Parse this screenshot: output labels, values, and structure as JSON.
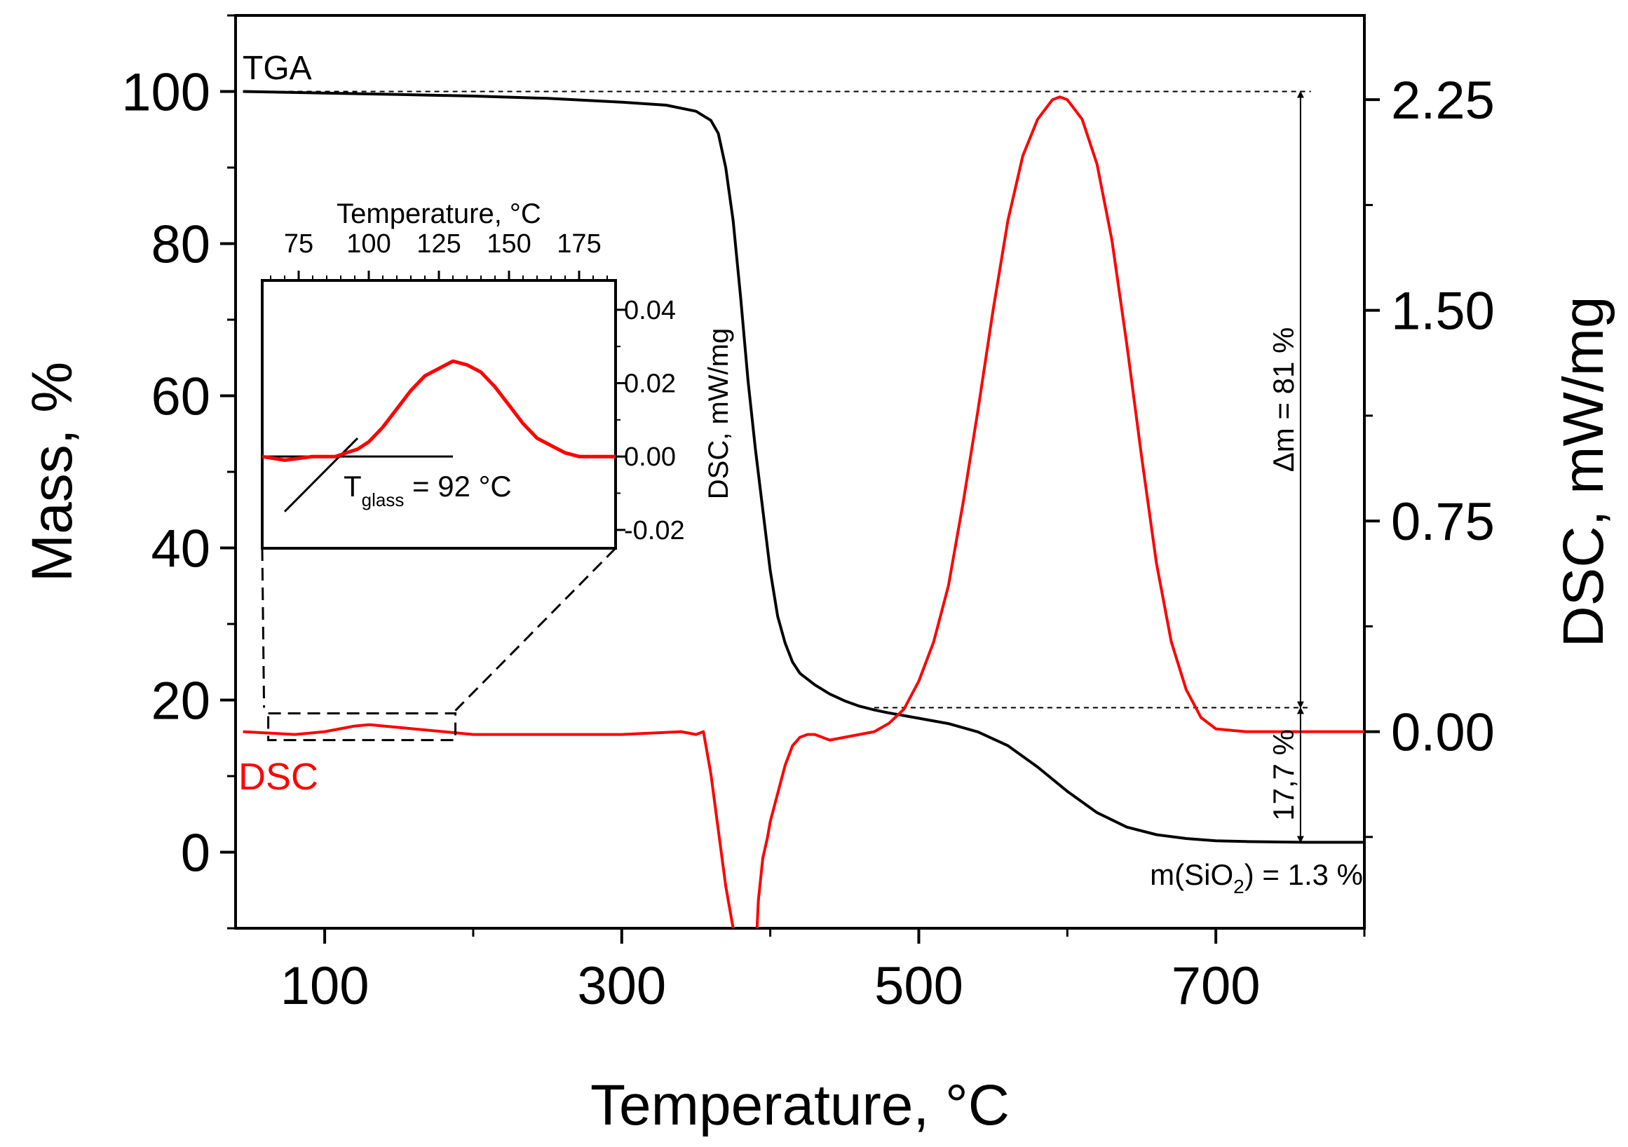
{
  "chart_data": {
    "type": "line",
    "xlabel": "Temperature, °C",
    "ylabel_left": "Mass, %",
    "ylabel_right": "DSC, mW/mg",
    "xlim": [
      40,
      800
    ],
    "ylim_left": [
      -10,
      110
    ],
    "ylim_right": [
      -0.7,
      2.55
    ],
    "xticks": [
      "100",
      "300",
      "500",
      "700"
    ],
    "xticks_values": [
      100,
      300,
      500,
      700
    ],
    "yticks_left": [
      "0",
      "20",
      "40",
      "60",
      "80",
      "100"
    ],
    "yticks_left_values": [
      0,
      20,
      40,
      60,
      80,
      100
    ],
    "yticks_right": [
      "0.00",
      "0.75",
      "1.50",
      "2.25"
    ],
    "yticks_right_values": [
      0,
      0.75,
      1.5,
      2.25
    ],
    "grid": false,
    "colors": {
      "tga": "#000000",
      "dsc": "#ff0000"
    },
    "series": [
      {
        "name": "TGA",
        "axis": "left",
        "x": [
          45,
          100,
          150,
          200,
          250,
          300,
          330,
          350,
          360,
          365,
          370,
          375,
          380,
          385,
          390,
          395,
          400,
          405,
          410,
          415,
          420,
          430,
          440,
          450,
          460,
          470,
          480,
          500,
          520,
          540,
          560,
          580,
          600,
          620,
          640,
          660,
          680,
          700,
          720,
          740,
          760,
          800
        ],
        "values": [
          100,
          99.8,
          99.6,
          99.4,
          99.1,
          98.6,
          98.2,
          97.4,
          96.2,
          94.5,
          90.0,
          83.0,
          73.0,
          62.0,
          53.0,
          45.0,
          37.0,
          31.0,
          27.5,
          25.0,
          23.5,
          22.0,
          20.8,
          19.9,
          19.2,
          18.7,
          18.3,
          17.6,
          16.9,
          15.8,
          14.0,
          11.2,
          8.0,
          5.2,
          3.3,
          2.3,
          1.8,
          1.5,
          1.4,
          1.35,
          1.3,
          1.3
        ]
      },
      {
        "name": "DSC",
        "axis": "right",
        "x": [
          45,
          80,
          100,
          120,
          130,
          140,
          160,
          180,
          200,
          250,
          300,
          340,
          350,
          355,
          360,
          365,
          370,
          375,
          380,
          385,
          388,
          390,
          392,
          395,
          398,
          400,
          405,
          410,
          415,
          420,
          425,
          430,
          435,
          440,
          450,
          460,
          470,
          480,
          490,
          500,
          510,
          520,
          530,
          540,
          550,
          560,
          570,
          580,
          590,
          595,
          600,
          610,
          620,
          630,
          640,
          650,
          660,
          670,
          680,
          690,
          700,
          720,
          740,
          760,
          800
        ],
        "values": [
          0.0,
          -0.01,
          0.0,
          0.02,
          0.025,
          0.02,
          0.01,
          0.0,
          -0.01,
          -0.01,
          -0.01,
          0.0,
          -0.01,
          0.0,
          -0.15,
          -0.35,
          -0.55,
          -0.7,
          -0.78,
          -0.85,
          -0.95,
          -0.82,
          -0.6,
          -0.45,
          -0.38,
          -0.32,
          -0.22,
          -0.12,
          -0.05,
          -0.02,
          -0.01,
          -0.01,
          -0.02,
          -0.03,
          -0.02,
          -0.01,
          0.0,
          0.03,
          0.08,
          0.18,
          0.32,
          0.52,
          0.82,
          1.15,
          1.5,
          1.82,
          2.05,
          2.18,
          2.25,
          2.26,
          2.25,
          2.18,
          2.02,
          1.75,
          1.38,
          0.98,
          0.6,
          0.32,
          0.15,
          0.05,
          0.01,
          0.0,
          0.0,
          0.0,
          0.0
        ]
      }
    ],
    "annotations": {
      "tga_label": "TGA",
      "dsc_label": "DSC",
      "delta_m": "Δm = 81 %",
      "residue_step": "17,7 %",
      "sio2_prefix": "m(SiO",
      "sio2_sub": "2",
      "sio2_suffix": ") = 1.3 %"
    },
    "inset": {
      "type": "line",
      "xlabel": "Temperature, °C",
      "ylabel": "DSC, mW/mg",
      "xlim": [
        62,
        188
      ],
      "ylim": [
        -0.025,
        0.048
      ],
      "xticks": [
        "75",
        "100",
        "125",
        "150",
        "175"
      ],
      "xticks_values": [
        75,
        100,
        125,
        150,
        175
      ],
      "yticks": [
        "-0.02",
        "0.00",
        "0.02",
        "0.04"
      ],
      "yticks_values": [
        -0.02,
        0.0,
        0.02,
        0.04
      ],
      "series": [
        {
          "name": "DSC",
          "x": [
            62,
            70,
            80,
            88,
            92,
            96,
            100,
            105,
            110,
            115,
            120,
            125,
            130,
            135,
            140,
            145,
            150,
            155,
            160,
            165,
            170,
            175,
            180,
            188
          ],
          "values": [
            0.0,
            -0.001,
            0.0,
            0.0,
            0.001,
            0.002,
            0.004,
            0.008,
            0.013,
            0.018,
            0.022,
            0.024,
            0.026,
            0.025,
            0.023,
            0.019,
            0.014,
            0.009,
            0.005,
            0.003,
            0.001,
            0.0,
            0.0,
            0.0
          ]
        }
      ],
      "tangent": {
        "x": [
          70,
          96
        ],
        "values": [
          -0.015,
          0.005
        ]
      },
      "baseline": {
        "x": [
          62,
          130
        ],
        "values": [
          0.0,
          0.0
        ]
      },
      "tglass_prefix": "T",
      "tglass_sub": "glass",
      "tglass_suffix": " = 92 °C"
    }
  }
}
